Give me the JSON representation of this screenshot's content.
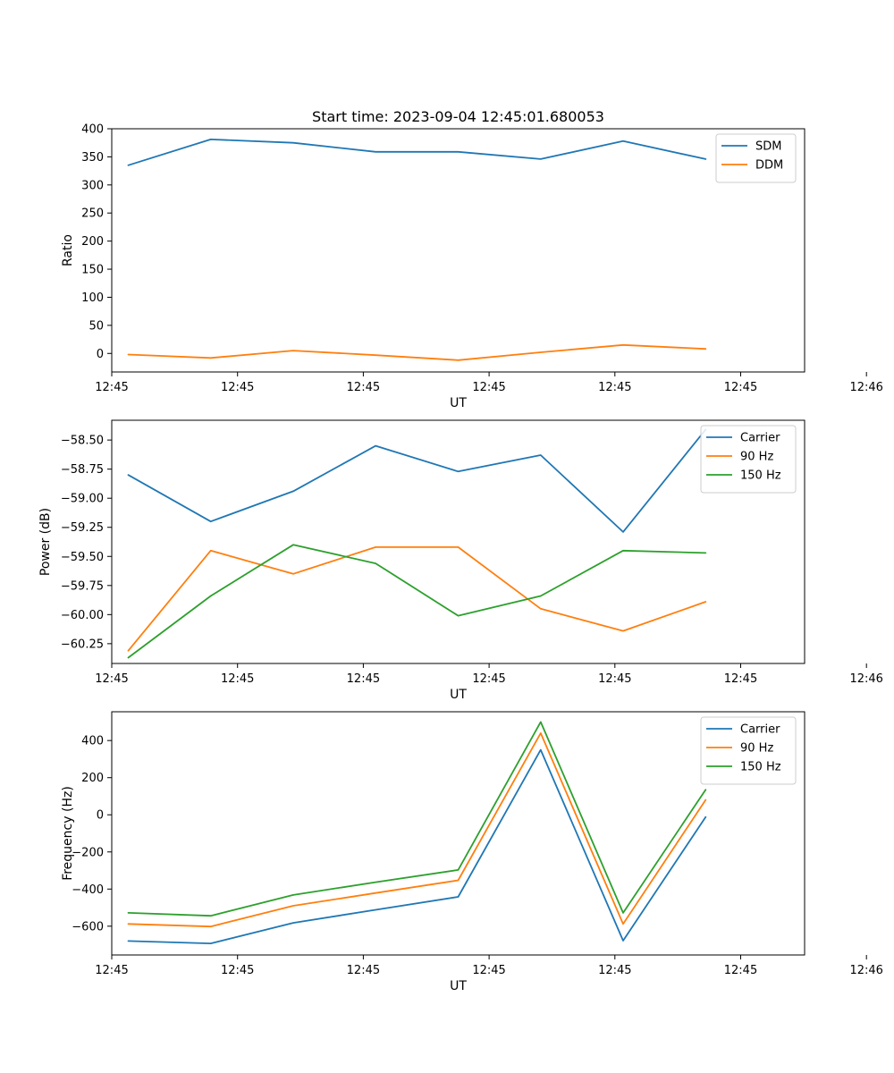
{
  "figure": {
    "title": "Start time: 2023-09-04 12:45:01.680053"
  },
  "chart_data": [
    {
      "type": "line",
      "title": "Start time: 2023-09-04 12:45:01.680053",
      "xlabel": "UT",
      "ylabel": "Ratio",
      "x": [
        1,
        2,
        3,
        4,
        5,
        6,
        7,
        8
      ],
      "xlim": [
        0.8,
        9.2
      ],
      "xticks": [
        0.8,
        2.325,
        3.85,
        5.375,
        6.9,
        8.425,
        9.95
      ],
      "xtick_labels": [
        "12:45",
        "12:45",
        "12:45",
        "12:45",
        "12:45",
        "12:45",
        "12:46"
      ],
      "ylim": [
        -33,
        400
      ],
      "yticks": [
        0,
        50,
        100,
        150,
        200,
        250,
        300,
        350,
        400
      ],
      "ytick_labels": [
        "0",
        "50",
        "100",
        "150",
        "200",
        "250",
        "300",
        "350",
        "400"
      ],
      "legend_position": "top-right",
      "series": [
        {
          "name": "SDM",
          "color": "#1f77b4",
          "values": [
            335,
            381,
            375,
            359,
            359,
            346,
            378,
            346
          ]
        },
        {
          "name": "DDM",
          "color": "#ff7f0e",
          "values": [
            -2,
            -8,
            5,
            -3,
            -12,
            2,
            15,
            8
          ]
        }
      ]
    },
    {
      "type": "line",
      "title": "",
      "xlabel": "UT",
      "ylabel": "Power (dB)",
      "x": [
        1,
        2,
        3,
        4,
        5,
        6,
        7,
        8
      ],
      "xlim": [
        0.8,
        9.2
      ],
      "xticks": [
        0.8,
        2.325,
        3.85,
        5.375,
        6.9,
        8.425,
        9.95
      ],
      "xtick_labels": [
        "12:45",
        "12:45",
        "12:45",
        "12:45",
        "12:45",
        "12:45",
        "12:46"
      ],
      "ylim": [
        -60.42,
        -58.33
      ],
      "yticks": [
        -60.25,
        -60.0,
        -59.75,
        -59.5,
        -59.25,
        -59.0,
        -58.75,
        -58.5
      ],
      "ytick_labels": [
        "−60.25",
        "−60.00",
        "−59.75",
        "−59.50",
        "−59.25",
        "−59.00",
        "−58.75",
        "−58.50"
      ],
      "legend_position": "top-right",
      "series": [
        {
          "name": "Carrier",
          "color": "#1f77b4",
          "values": [
            -58.8,
            -59.2,
            -58.94,
            -58.55,
            -58.77,
            -58.63,
            -59.29,
            -58.41
          ]
        },
        {
          "name": "90 Hz",
          "color": "#ff7f0e",
          "values": [
            -60.31,
            -59.45,
            -59.65,
            -59.42,
            -59.42,
            -59.95,
            -60.14,
            -59.89
          ]
        },
        {
          "name": "150 Hz",
          "color": "#2ca02c",
          "values": [
            -60.37,
            -59.84,
            -59.4,
            -59.56,
            -60.01,
            -59.84,
            -59.45,
            -59.47
          ]
        }
      ]
    },
    {
      "type": "line",
      "title": "",
      "xlabel": "UT",
      "ylabel": "Frequency (Hz)",
      "x": [
        1,
        2,
        3,
        4,
        5,
        6,
        7,
        8
      ],
      "xlim": [
        0.8,
        9.2
      ],
      "xticks": [
        0.8,
        2.325,
        3.85,
        5.375,
        6.9,
        8.425,
        9.95
      ],
      "xtick_labels": [
        "12:45",
        "12:45",
        "12:45",
        "12:45",
        "12:45",
        "12:45",
        "12:46"
      ],
      "ylim": [
        -755,
        555
      ],
      "yticks": [
        -600,
        -400,
        -200,
        0,
        200,
        400
      ],
      "ytick_labels": [
        "−600",
        "−400",
        "−200",
        "0",
        "200",
        "400"
      ],
      "legend_position": "top-right",
      "series": [
        {
          "name": "Carrier",
          "color": "#1f77b4",
          "values": [
            -680,
            -693,
            -582,
            -512,
            -442,
            350,
            -678,
            -12
          ]
        },
        {
          "name": "90 Hz",
          "color": "#ff7f0e",
          "values": [
            -588,
            -602,
            -490,
            -421,
            -353,
            440,
            -588,
            80
          ]
        },
        {
          "name": "150 Hz",
          "color": "#2ca02c",
          "values": [
            -528,
            -544,
            -432,
            -363,
            -297,
            500,
            -528,
            135
          ]
        }
      ]
    }
  ]
}
